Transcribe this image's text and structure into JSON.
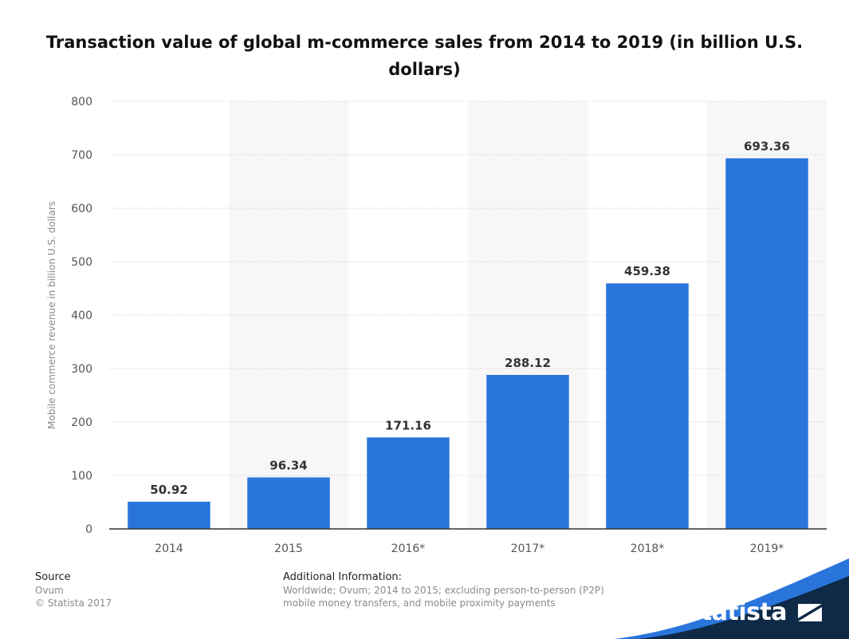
{
  "title": "Transaction value of global m-commerce sales from 2014 to 2019 (in billion U.S. dollars)",
  "chart_data": {
    "type": "bar",
    "title": "Transaction value of global m-commerce sales from 2014 to 2019 (in billion U.S. dollars)",
    "xlabel": "",
    "ylabel": "Mobile commerce revenue in billion U.S. dollars",
    "categories": [
      "2014",
      "2015",
      "2016*",
      "2017*",
      "2018*",
      "2019*"
    ],
    "values": [
      50.92,
      96.34,
      171.16,
      288.12,
      459.38,
      693.36
    ],
    "data_labels": [
      "50.92",
      "96.34",
      "171.16",
      "288.12",
      "459.38",
      "693.36"
    ],
    "ylim": [
      0,
      800
    ],
    "yticks": [
      0,
      100,
      200,
      300,
      400,
      500,
      600,
      700,
      800
    ],
    "grid": true,
    "legend": "none",
    "bar_color": "#2a75dc"
  },
  "footer": {
    "source_heading": "Source",
    "source_lines": [
      "Ovum",
      "© Statista 2017"
    ],
    "additional_heading": "Additional Information:",
    "additional_lines": [
      "Worldwide; Ovum; 2014 to 2015; excluding person-to-person (P2P)",
      "mobile money transfers, and mobile proximity payments"
    ]
  },
  "brand": {
    "name": "statista",
    "color": "#0e2a47",
    "accent": "#2a75dc"
  }
}
